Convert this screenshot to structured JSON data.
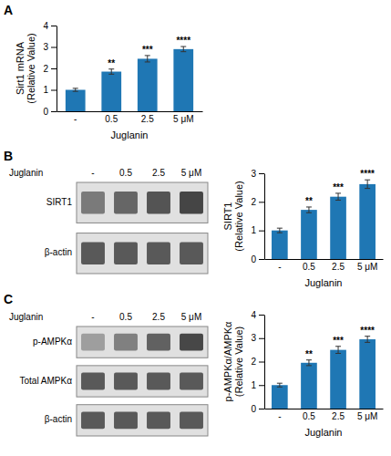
{
  "chart_data": [
    {
      "type": "bar",
      "title": "A",
      "categories": [
        "-",
        "0.5",
        "2.5",
        "5 μM"
      ],
      "values": [
        1.0,
        1.85,
        2.45,
        2.9
      ],
      "errors": [
        0.07,
        0.12,
        0.15,
        0.12
      ],
      "annotations": [
        null,
        "**",
        "***",
        "****"
      ],
      "xlabel": "Juglanin",
      "ylabel": "Sirt1 mRNA\n(Relative Value)",
      "ylim": [
        0,
        4
      ],
      "yticks": [
        0,
        1,
        2,
        3,
        4
      ]
    },
    {
      "type": "blot",
      "title": "B",
      "xlabel": "Juglanin",
      "categories": [
        "-",
        "0.5",
        "2.5",
        "5 μM"
      ],
      "series": [
        {
          "name": "SIRT1",
          "values": [
            0.48,
            0.4,
            0.33,
            0.27
          ]
        },
        {
          "name": "β-actin",
          "values": [
            0.35,
            0.35,
            0.35,
            0.35
          ]
        }
      ]
    },
    {
      "type": "bar",
      "categories": [
        "-",
        "0.5",
        "2.5",
        "5 μM"
      ],
      "values": [
        1.0,
        1.72,
        2.18,
        2.62
      ],
      "errors": [
        0.08,
        0.1,
        0.12,
        0.15
      ],
      "annotations": [
        null,
        "**",
        "***",
        "****"
      ],
      "xlabel": "Juglanin",
      "ylabel": "SIRT1\n(Relative Value)",
      "ylim": [
        0,
        3
      ],
      "yticks": [
        0,
        1,
        2,
        3
      ]
    },
    {
      "type": "blot",
      "title": "C",
      "xlabel": "Juglanin",
      "categories": [
        "-",
        "0.5",
        "2.5",
        "5 μM"
      ],
      "series": [
        {
          "name": "p-AMPKα",
          "values": [
            0.62,
            0.5,
            0.38,
            0.28
          ]
        },
        {
          "name": "Total AMPKα",
          "values": [
            0.35,
            0.35,
            0.35,
            0.35
          ]
        },
        {
          "name": "β-actin",
          "values": [
            0.35,
            0.35,
            0.35,
            0.35
          ]
        }
      ]
    },
    {
      "type": "bar",
      "categories": [
        "-",
        "0.5",
        "2.5",
        "5 μM"
      ],
      "values": [
        1.0,
        1.95,
        2.5,
        2.95
      ],
      "errors": [
        0.08,
        0.12,
        0.15,
        0.13
      ],
      "annotations": [
        null,
        "**",
        "***",
        "****"
      ],
      "xlabel": "Juglanin",
      "ylabel": "p-AMPKα/AMPKα\n(Relative Value)",
      "ylim": [
        0,
        4
      ],
      "yticks": [
        0,
        1,
        2,
        3,
        4
      ]
    }
  ]
}
